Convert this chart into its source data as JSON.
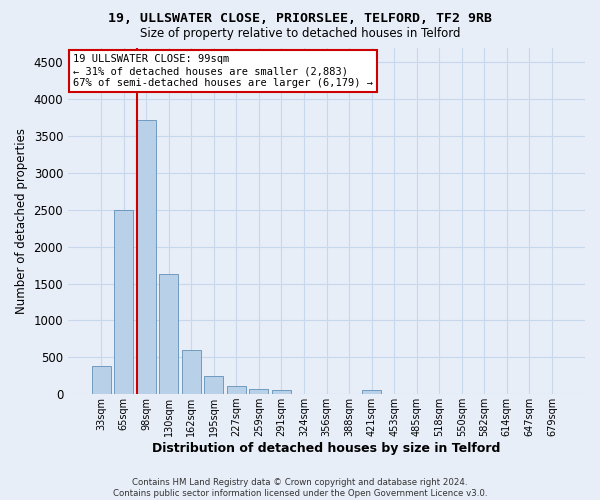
{
  "title1": "19, ULLSWATER CLOSE, PRIORSLEE, TELFORD, TF2 9RB",
  "title2": "Size of property relative to detached houses in Telford",
  "xlabel": "Distribution of detached houses by size in Telford",
  "ylabel": "Number of detached properties",
  "footnote": "Contains HM Land Registry data © Crown copyright and database right 2024.\nContains public sector information licensed under the Open Government Licence v3.0.",
  "bar_labels": [
    "33sqm",
    "65sqm",
    "98sqm",
    "130sqm",
    "162sqm",
    "195sqm",
    "227sqm",
    "259sqm",
    "291sqm",
    "324sqm",
    "356sqm",
    "388sqm",
    "421sqm",
    "453sqm",
    "485sqm",
    "518sqm",
    "550sqm",
    "582sqm",
    "614sqm",
    "647sqm",
    "679sqm"
  ],
  "bar_values": [
    380,
    2500,
    3720,
    1630,
    600,
    245,
    110,
    65,
    50,
    0,
    0,
    0,
    55,
    0,
    0,
    0,
    0,
    0,
    0,
    0,
    0
  ],
  "bar_color": "#b8d0e8",
  "bar_edge_color": "#6090b8",
  "vline_index": 2,
  "vline_color": "#cc0000",
  "annotation_text": "19 ULLSWATER CLOSE: 99sqm\n← 31% of detached houses are smaller (2,883)\n67% of semi-detached houses are larger (6,179) →",
  "annotation_box_color": "white",
  "annotation_box_edge": "#cc0000",
  "ylim": [
    0,
    4700
  ],
  "yticks": [
    0,
    500,
    1000,
    1500,
    2000,
    2500,
    3000,
    3500,
    4000,
    4500
  ],
  "grid_color": "#c8d8ec",
  "fig_bg": "#e8eef8",
  "plot_bg": "#e8eef8"
}
